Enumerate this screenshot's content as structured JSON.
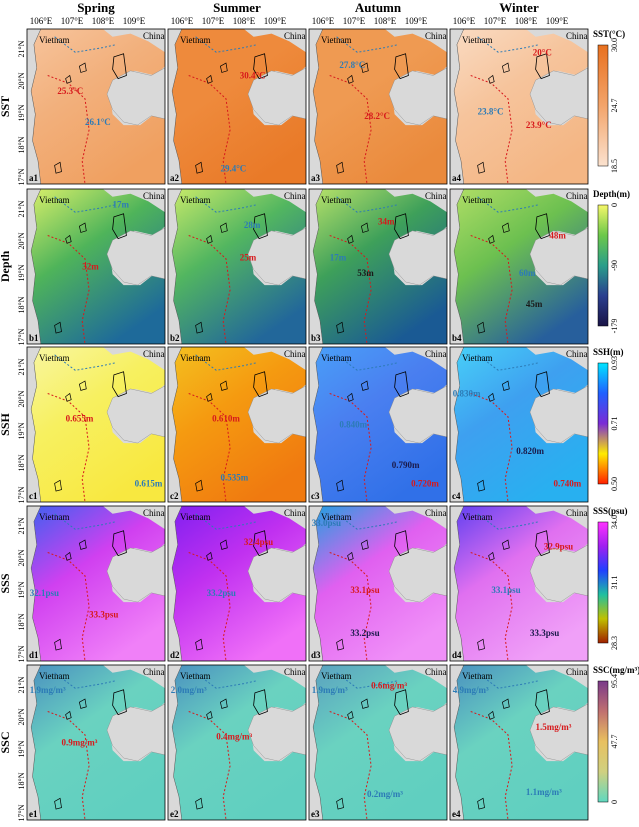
{
  "seasons": [
    "Spring",
    "Summer",
    "Autumn",
    "Winter"
  ],
  "lon_ticks": [
    "106°E",
    "107°E",
    "108°E",
    "109°E"
  ],
  "lat_ticks": [
    "21°N",
    "20°N",
    "19°N",
    "18°N",
    "17°N"
  ],
  "labels": {
    "vietnam": "Vietnam",
    "china": "China"
  },
  "chart_data": {
    "type": "heatmap",
    "rows": [
      {
        "name": "SST",
        "colorbar": {
          "title": "SST(°C)",
          "ticks": [
            "30.0",
            "24.7",
            "18.5"
          ],
          "colors": [
            "#e8701f",
            "#f3a46a",
            "#fbe2cf"
          ]
        },
        "panels": [
          {
            "id": "a1",
            "annotations": [
              {
                "text": "25.3°C",
                "color": "#d7191c"
              },
              {
                "text": "26.1°C",
                "color": "#2c7bb6"
              }
            ]
          },
          {
            "id": "a2",
            "annotations": [
              {
                "text": "30.4°C",
                "color": "#d7191c"
              },
              {
                "text": "29.4°C",
                "color": "#2c7bb6"
              }
            ]
          },
          {
            "id": "a3",
            "annotations": [
              {
                "text": "27.8°C",
                "color": "#2c7bb6"
              },
              {
                "text": "28.2°C",
                "color": "#d7191c"
              }
            ]
          },
          {
            "id": "a4",
            "annotations": [
              {
                "text": "20°C",
                "color": "#d7191c"
              },
              {
                "text": "23.8°C",
                "color": "#2c7bb6"
              },
              {
                "text": "23.9°C",
                "color": "#d7191c"
              }
            ]
          }
        ]
      },
      {
        "name": "Depth",
        "colorbar": {
          "title": "Depth(m)",
          "ticks": [
            "0",
            "-90",
            "-179"
          ],
          "colors": [
            "#f5f76a",
            "#6cc84a",
            "#2a9e8a",
            "#2a3f8f",
            "#1a1446"
          ]
        },
        "panels": [
          {
            "id": "b1",
            "annotations": [
              {
                "text": "17m",
                "color": "#2c7bb6"
              },
              {
                "text": "32m",
                "color": "#d7191c"
              }
            ]
          },
          {
            "id": "b2",
            "annotations": [
              {
                "text": "28m",
                "color": "#2c7bb6"
              },
              {
                "text": "25m",
                "color": "#d7191c"
              }
            ]
          },
          {
            "id": "b3",
            "annotations": [
              {
                "text": "34m",
                "color": "#d7191c"
              },
              {
                "text": "17m",
                "color": "#2c7bb6"
              },
              {
                "text": "53m",
                "color": "#1a1a1a"
              }
            ]
          },
          {
            "id": "b4",
            "annotations": [
              {
                "text": "48m",
                "color": "#d7191c"
              },
              {
                "text": "60m",
                "color": "#2c7bb6"
              },
              {
                "text": "45m",
                "color": "#1a1a1a"
              }
            ]
          }
        ]
      },
      {
        "name": "SSH",
        "colorbar": {
          "title": "SSH(m)",
          "ticks": [
            "0.93",
            "0.71",
            "0.50"
          ],
          "colors": [
            "#00e5ff",
            "#2060ff",
            "#7a2bd6",
            "#ffeb00",
            "#ff2000"
          ]
        },
        "panels": [
          {
            "id": "c1",
            "annotations": [
              {
                "text": "0.655m",
                "color": "#d7191c"
              },
              {
                "text": "0.615m",
                "color": "#2c7bb6"
              }
            ]
          },
          {
            "id": "c2",
            "annotations": [
              {
                "text": "0.610m",
                "color": "#d7191c"
              },
              {
                "text": "0.535m",
                "color": "#2c7bb6"
              }
            ]
          },
          {
            "id": "c3",
            "annotations": [
              {
                "text": "0.840m",
                "color": "#2c7bb6"
              },
              {
                "text": "0.790m",
                "color": "#1a1a4a"
              },
              {
                "text": "0.720m",
                "color": "#d7191c"
              }
            ]
          },
          {
            "id": "c4",
            "annotations": [
              {
                "text": "0.830m",
                "color": "#2c7bb6"
              },
              {
                "text": "0.820m",
                "color": "#1a1a4a"
              },
              {
                "text": "0.740m",
                "color": "#d7191c"
              }
            ]
          }
        ]
      },
      {
        "name": "SSS",
        "colorbar": {
          "title": "SSS(psu)",
          "ticks": [
            "34.0",
            "31.1",
            "28.3"
          ],
          "colors": [
            "#ff33ff",
            "#a020f0",
            "#2040ff",
            "#20c0a0",
            "#c0c000",
            "#a02000"
          ]
        },
        "panels": [
          {
            "id": "d1",
            "annotations": [
              {
                "text": "32.1psu",
                "color": "#2c7bb6"
              },
              {
                "text": "33.3psu",
                "color": "#d7191c"
              }
            ]
          },
          {
            "id": "d2",
            "annotations": [
              {
                "text": "32.4psu",
                "color": "#d7191c"
              },
              {
                "text": "33.2psu",
                "color": "#2c7bb6"
              }
            ]
          },
          {
            "id": "d3",
            "annotations": [
              {
                "text": "33.0psu",
                "color": "#2c7bb6"
              },
              {
                "text": "33.1psu",
                "color": "#d7191c"
              },
              {
                "text": "33.2psu",
                "color": "#1a1a4a"
              }
            ]
          },
          {
            "id": "d4",
            "annotations": [
              {
                "text": "32.9psu",
                "color": "#d7191c"
              },
              {
                "text": "33.1psu",
                "color": "#2c7bb6"
              },
              {
                "text": "33.3psu",
                "color": "#1a1a4a"
              }
            ]
          }
        ]
      },
      {
        "name": "SSC",
        "colorbar": {
          "title": "SSC(mg/m³)",
          "ticks": [
            "95.4",
            "47.7",
            "0"
          ],
          "colors": [
            "#7a3a8a",
            "#c07070",
            "#e8c060",
            "#d0d080",
            "#60d8c0"
          ]
        },
        "panels": [
          {
            "id": "e1",
            "annotations": [
              {
                "text": "1.9mg/m³",
                "color": "#2c7bb6"
              },
              {
                "text": "0.9mg/m³",
                "color": "#d7191c"
              }
            ]
          },
          {
            "id": "e2",
            "annotations": [
              {
                "text": "2.0mg/m³",
                "color": "#2c7bb6"
              },
              {
                "text": "0.4mg/m³",
                "color": "#d7191c"
              }
            ]
          },
          {
            "id": "e3",
            "annotations": [
              {
                "text": "1.9mg/m³",
                "color": "#2c7bb6"
              },
              {
                "text": "0.6mg/m³",
                "color": "#d7191c"
              },
              {
                "text": "0.2mg/m³",
                "color": "#2c7bb6"
              }
            ]
          },
          {
            "id": "e4",
            "annotations": [
              {
                "text": "4.9mg/m³",
                "color": "#2c7bb6"
              },
              {
                "text": "1.5mg/m³",
                "color": "#d7191c"
              },
              {
                "text": "1.1mg/m³",
                "color": "#2c7bb6"
              }
            ]
          }
        ]
      }
    ],
    "panel_colors": {
      "SST": [
        "#f2b07c",
        "#ee8a3c",
        "#ef9a52",
        "#f6c49c"
      ],
      "Depth": [
        "#4fb45a",
        "#52b660",
        "#3ea05a",
        "#6cc050"
      ],
      "SSH": [
        "#f7f060",
        "#f59a10",
        "#4a7ff0",
        "#3ea0f0"
      ],
      "SSS": [
        "#d040f0",
        "#c030f0",
        "#e060f0",
        "#e070f0"
      ],
      "SSC": [
        "#6ad2c0",
        "#6ad2c0",
        "#6ad2c0",
        "#6ad2c0"
      ]
    },
    "panel_colors_deep": {
      "SST": [
        "#f0a060",
        "#e97a28",
        "#ea8a3c",
        "#f4b684"
      ],
      "Depth": [
        "#1e6a9a",
        "#22679a",
        "#1a5a94",
        "#275f9c"
      ],
      "SSH": [
        "#f8e840",
        "#f07a10",
        "#3070e8",
        "#28b0f0"
      ],
      "SSS": [
        "#f080f8",
        "#f070f8",
        "#f090f8",
        "#f0a0f8"
      ],
      "SSC": [
        "#60cfc0",
        "#60cfc0",
        "#60cfc0",
        "#60cfc0"
      ]
    },
    "panel_colors_coast": {
      "SST": [
        "#f7c49c",
        "#ee8a3c",
        "#ef9a52",
        "#fadbc2"
      ],
      "Depth": [
        "#d8ef6a",
        "#c8ea6a",
        "#b8e26a",
        "#b0de66"
      ],
      "SSH": [
        "#f8f6a0",
        "#f4c020",
        "#4a9ff8",
        "#48d0f8"
      ],
      "SSS": [
        "#4060f0",
        "#8020f0",
        "#20a0e0",
        "#6040f0"
      ],
      "SSC": [
        "#4a90c0",
        "#4a90c0",
        "#5aa0c0",
        "#4a90c0"
      ]
    }
  }
}
